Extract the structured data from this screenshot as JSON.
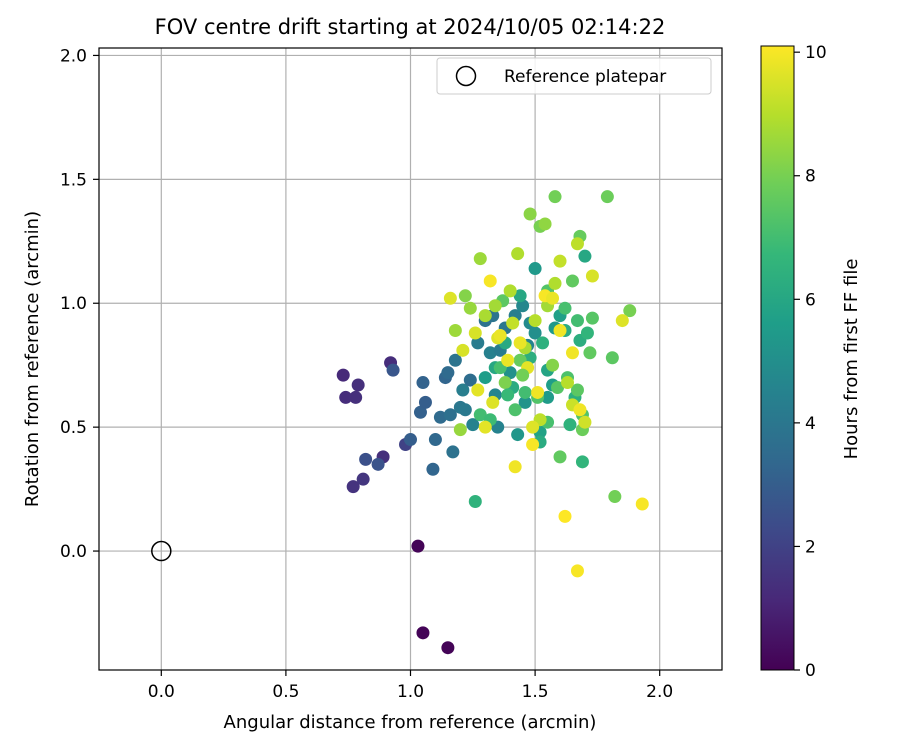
{
  "chart_data": {
    "type": "scatter",
    "title": "FOV centre drift starting at 2024/10/05 02:14:22",
    "xlabel": "Angular distance from reference (arcmin)",
    "ylabel": "Rotation from reference (arcmin)",
    "xlim": [
      -0.25,
      2.25
    ],
    "ylim": [
      -0.48,
      2.03
    ],
    "x_ticks": [
      0.0,
      0.5,
      1.0,
      1.5,
      2.0
    ],
    "x_tick_labels": [
      "0.0",
      "0.5",
      "1.0",
      "1.5",
      "2.0"
    ],
    "y_ticks": [
      0.0,
      0.5,
      1.0,
      1.5,
      2.0
    ],
    "y_tick_labels": [
      "0.0",
      "0.5",
      "1.0",
      "1.5",
      "2.0"
    ],
    "grid": true,
    "legend": {
      "placement": "upper-right",
      "entries": [
        "Reference platepar"
      ]
    },
    "reference_point": {
      "name": "Reference platepar",
      "x": 0.0,
      "y": 0.0,
      "marker": "open-circle"
    },
    "colorbar": {
      "label": "Hours from first FF file",
      "range": [
        0,
        10.1
      ],
      "ticks": [
        0,
        2,
        4,
        6,
        8,
        10
      ],
      "tick_labels": [
        "0",
        "2",
        "4",
        "6",
        "8",
        "10"
      ],
      "colormap": "viridis",
      "colormap_stops": [
        "#440154",
        "#482878",
        "#3e4989",
        "#31688e",
        "#26828e",
        "#1f9e89",
        "#35b779",
        "#6ece58",
        "#b5de2b",
        "#fde725"
      ]
    },
    "series": [
      {
        "points": [
          [
            1.03,
            0.02,
            0.1
          ],
          [
            1.05,
            -0.33,
            0.1
          ],
          [
            1.15,
            -0.39,
            0.1
          ],
          [
            0.73,
            0.71,
            1.2
          ],
          [
            0.74,
            0.62,
            1.3
          ],
          [
            0.78,
            0.62,
            1.4
          ],
          [
            0.79,
            0.67,
            1.4
          ],
          [
            0.77,
            0.26,
            1.5
          ],
          [
            0.81,
            0.29,
            1.6
          ],
          [
            0.89,
            0.38,
            1.4
          ],
          [
            0.92,
            0.76,
            1.3
          ],
          [
            0.82,
            0.37,
            2.5
          ],
          [
            0.87,
            0.35,
            2.6
          ],
          [
            0.93,
            0.73,
            2.7
          ],
          [
            0.98,
            0.43,
            2.0
          ],
          [
            1.0,
            0.45,
            3.0
          ],
          [
            1.04,
            0.56,
            3.1
          ],
          [
            1.06,
            0.6,
            3.0
          ],
          [
            1.09,
            0.33,
            3.3
          ],
          [
            1.1,
            0.45,
            3.4
          ],
          [
            1.05,
            0.68,
            3.2
          ],
          [
            1.12,
            0.54,
            3.5
          ],
          [
            1.14,
            0.7,
            3.3
          ],
          [
            1.15,
            0.72,
            3.5
          ],
          [
            1.16,
            0.55,
            3.7
          ],
          [
            1.17,
            0.4,
            3.8
          ],
          [
            1.18,
            0.77,
            3.9
          ],
          [
            1.2,
            0.58,
            4.0
          ],
          [
            1.22,
            0.57,
            4.1
          ],
          [
            1.21,
            0.65,
            4.3
          ],
          [
            1.24,
            0.69,
            3.6
          ],
          [
            1.25,
            0.51,
            4.5
          ],
          [
            1.27,
            0.84,
            4.2
          ],
          [
            1.3,
            0.93,
            3.8
          ],
          [
            1.32,
            0.8,
            4.4
          ],
          [
            1.33,
            0.95,
            3.9
          ],
          [
            1.34,
            0.63,
            4.6
          ],
          [
            1.36,
            0.81,
            4.2
          ],
          [
            1.38,
            0.9,
            4.0
          ],
          [
            1.35,
            0.5,
            4.5
          ],
          [
            1.42,
            0.95,
            4.3
          ],
          [
            1.45,
            0.99,
            4.7
          ],
          [
            1.47,
            0.83,
            4.5
          ],
          [
            1.48,
            0.92,
            4.8
          ],
          [
            1.5,
            0.88,
            5.0
          ],
          [
            1.4,
            0.72,
            5.1
          ],
          [
            1.43,
            0.47,
            5.3
          ],
          [
            1.46,
            0.6,
            5.2
          ],
          [
            1.5,
            1.14,
            5.4
          ],
          [
            1.55,
            0.62,
            5.5
          ],
          [
            1.57,
            0.67,
            5.6
          ],
          [
            1.58,
            0.9,
            5.4
          ],
          [
            1.6,
            0.95,
            5.7
          ],
          [
            1.52,
            0.48,
            5.8
          ],
          [
            1.55,
            0.73,
            5.9
          ],
          [
            1.3,
            0.7,
            5.6
          ],
          [
            1.34,
            0.74,
            6.0
          ],
          [
            1.38,
            0.84,
            6.1
          ],
          [
            1.41,
            0.66,
            6.2
          ],
          [
            1.44,
            1.03,
            6.0
          ],
          [
            1.48,
            0.78,
            6.3
          ],
          [
            1.53,
            0.84,
            6.4
          ],
          [
            1.62,
            0.89,
            6.2
          ],
          [
            1.64,
            0.51,
            6.5
          ],
          [
            1.66,
            0.62,
            6.4
          ],
          [
            1.68,
            0.85,
            6.3
          ],
          [
            1.7,
            1.19,
            6.0
          ],
          [
            1.71,
            0.88,
            6.6
          ],
          [
            1.26,
            0.2,
            6.5
          ],
          [
            1.52,
            0.44,
            6.2
          ],
          [
            1.69,
            0.36,
            6.6
          ],
          [
            1.28,
            0.55,
            7.0
          ],
          [
            1.32,
            0.53,
            6.9
          ],
          [
            1.36,
            0.74,
            7.1
          ],
          [
            1.42,
            0.57,
            7.2
          ],
          [
            1.46,
            0.64,
            7.0
          ],
          [
            1.51,
            0.62,
            7.3
          ],
          [
            1.55,
            0.52,
            7.1
          ],
          [
            1.59,
            0.66,
            7.4
          ],
          [
            1.63,
            0.7,
            7.2
          ],
          [
            1.67,
            0.65,
            7.5
          ],
          [
            1.69,
            0.55,
            7.3
          ],
          [
            1.72,
            0.8,
            7.6
          ],
          [
            1.67,
            0.93,
            7.0
          ],
          [
            1.55,
            1.05,
            7.3
          ],
          [
            1.44,
            0.77,
            7.7
          ],
          [
            1.37,
            1.01,
            7.5
          ],
          [
            1.6,
            0.38,
            7.6
          ],
          [
            1.69,
            0.49,
            7.8
          ],
          [
            1.73,
            0.94,
            7.4
          ],
          [
            1.65,
            1.09,
            7.6
          ],
          [
            1.68,
            1.27,
            7.7
          ],
          [
            1.58,
            1.43,
            7.9
          ],
          [
            1.79,
            1.43,
            7.8
          ],
          [
            1.81,
            0.78,
            7.5
          ],
          [
            1.82,
            0.22,
            7.9
          ],
          [
            1.88,
            0.97,
            8.0
          ],
          [
            1.52,
            1.31,
            8.0
          ],
          [
            1.38,
            0.68,
            8.1
          ],
          [
            1.48,
            1.36,
            8.3
          ],
          [
            1.54,
            1.32,
            8.4
          ],
          [
            1.2,
            0.49,
            8.5
          ],
          [
            1.22,
            1.03,
            8.2
          ],
          [
            1.28,
            1.18,
            8.6
          ],
          [
            1.24,
            0.98,
            8.5
          ],
          [
            1.3,
            0.95,
            8.8
          ],
          [
            1.34,
            0.99,
            8.7
          ],
          [
            1.4,
            1.05,
            8.9
          ],
          [
            1.43,
            1.2,
            8.9
          ],
          [
            1.46,
            0.82,
            8.8
          ],
          [
            1.5,
            0.93,
            9.0
          ],
          [
            1.52,
            0.53,
            9.1
          ],
          [
            1.55,
            0.99,
            8.7
          ],
          [
            1.58,
            1.08,
            8.9
          ],
          [
            1.6,
            1.17,
            9.2
          ],
          [
            1.63,
            0.68,
            9.0
          ],
          [
            1.65,
            0.59,
            9.3
          ],
          [
            1.67,
            1.24,
            9.1
          ],
          [
            1.7,
            0.52,
            9.4
          ],
          [
            1.73,
            1.11,
            9.5
          ],
          [
            1.85,
            0.93,
            9.6
          ],
          [
            1.18,
            0.89,
            8.6
          ],
          [
            1.26,
            0.88,
            9.5
          ],
          [
            1.3,
            0.5,
            9.7
          ],
          [
            1.35,
            0.86,
            9.6
          ],
          [
            1.39,
            0.77,
            9.8
          ],
          [
            1.42,
            0.34,
            9.9
          ],
          [
            1.44,
            0.84,
            9.8
          ],
          [
            1.47,
            0.74,
            9.7
          ],
          [
            1.49,
            0.43,
            10.0
          ],
          [
            1.51,
            0.64,
            9.9
          ],
          [
            1.54,
            1.03,
            10.0
          ],
          [
            1.57,
            1.02,
            9.8
          ],
          [
            1.6,
            0.89,
            9.9
          ],
          [
            1.62,
            0.14,
            10.1
          ],
          [
            1.65,
            0.8,
            9.9
          ],
          [
            1.67,
            -0.08,
            10.0
          ],
          [
            1.68,
            0.57,
            9.9
          ],
          [
            1.93,
            0.19,
            10.0
          ],
          [
            1.32,
            1.09,
            10.0
          ],
          [
            1.27,
            0.65,
            9.7
          ],
          [
            1.21,
            0.81,
            9.5
          ],
          [
            1.16,
            1.02,
            9.6
          ],
          [
            1.33,
            0.6,
            9.6
          ],
          [
            1.41,
            0.92,
            9.2
          ],
          [
            1.49,
            0.5,
            9.6
          ],
          [
            1.36,
            0.87,
            9.8
          ],
          [
            1.45,
            0.71,
            7.9
          ],
          [
            1.57,
            0.75,
            8.2
          ],
          [
            1.62,
            0.98,
            7.1
          ],
          [
            1.39,
            0.63,
            6.8
          ]
        ]
      }
    ]
  }
}
